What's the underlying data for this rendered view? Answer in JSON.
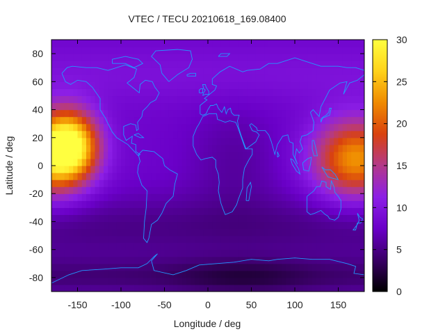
{
  "chart_data": {
    "type": "heatmap",
    "title": "VTEC / TECU 20210618_169.08400",
    "xlabel": "Longitude / deg",
    "ylabel": "Latitude / deg",
    "xlim": [
      -180,
      180
    ],
    "ylim": [
      -90,
      90
    ],
    "x_ticks": [
      -150,
      -100,
      -50,
      0,
      50,
      100,
      150
    ],
    "y_ticks": [
      80,
      60,
      40,
      20,
      0,
      -20,
      -40,
      -60,
      -80
    ],
    "colorbar": {
      "min": 0,
      "max": 30,
      "ticks": [
        30,
        25,
        20,
        15,
        10,
        5,
        0
      ],
      "colormap": [
        "#000000",
        "#3a0066",
        "#6a00c8",
        "#8c1fe6",
        "#b3398a",
        "#d9420f",
        "#ef8a00",
        "#ffd21a",
        "#ffff40"
      ]
    },
    "tec_features": [
      {
        "name": "pacific-east-crest",
        "lon": -160,
        "lat": 15,
        "peak_tecu": 28
      },
      {
        "name": "pacific-west-crest",
        "lon": 170,
        "lat": 5,
        "peak_tecu": 23
      },
      {
        "name": "africa-europe-low",
        "lon": 30,
        "lat": 5,
        "peak_tecu": 6
      },
      {
        "name": "southern-polar-low",
        "lon": 40,
        "lat": -80,
        "peak_tecu": 2
      },
      {
        "name": "background",
        "peak_tecu": 8
      }
    ],
    "overlay": "coastlines",
    "coastline_color": "#2299ff"
  }
}
